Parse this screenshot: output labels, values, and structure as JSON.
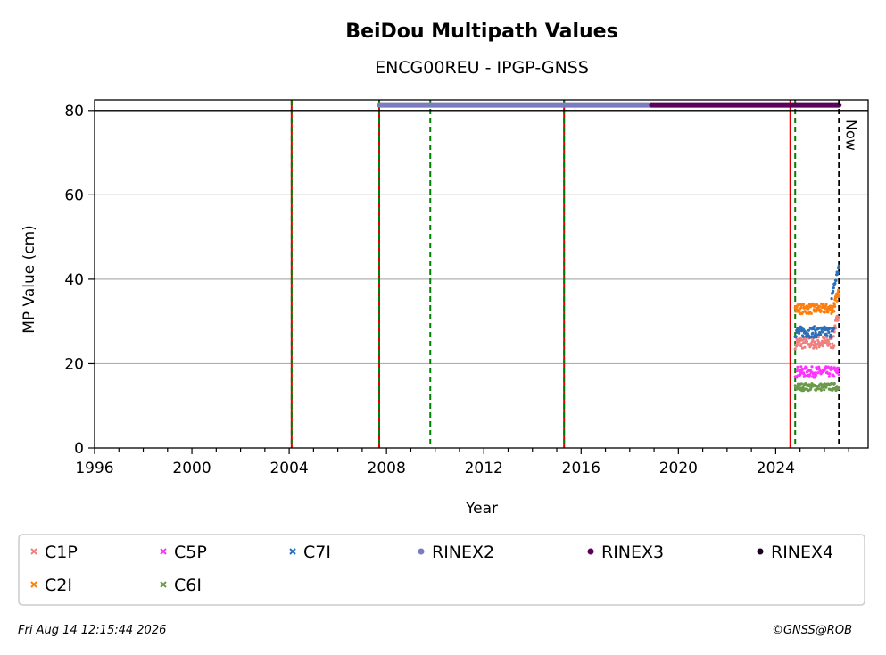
{
  "chart_data": {
    "type": "scatter",
    "title": "BeiDou Multipath Values",
    "subtitle": "ENCG00REU - IPGP-GNSS",
    "xlabel": "Year",
    "ylabel": "MP Value (cm)",
    "xlim": [
      1996,
      2027.8
    ],
    "ylim": [
      0,
      82.5
    ],
    "xticks": [
      1996,
      2000,
      2004,
      2008,
      2012,
      2016,
      2020,
      2024
    ],
    "yticks": [
      0,
      20,
      40,
      60,
      80
    ],
    "grid": "y",
    "now_label": "Now",
    "now_x": 2026.6,
    "reference_line_y": 80,
    "red_vlines": [
      2004.1,
      2007.7,
      2015.3,
      2024.6
    ],
    "green_dashed_vlines": [
      2004.1,
      2007.7,
      2009.8,
      2015.3,
      2024.8
    ],
    "rinex_bars": [
      {
        "name": "RINEX2",
        "color": "#7b7bbf",
        "start": 2007.7,
        "end": 2018.9,
        "y": 81.3
      },
      {
        "name": "RINEX3",
        "color": "#5b005b",
        "start": 2018.9,
        "end": 2026.6,
        "y": 81.3
      }
    ],
    "series": [
      {
        "name": "C1P",
        "color": "#f08080",
        "start": 2024.8,
        "end": 2026.4,
        "mean": 25,
        "spread": 1.5,
        "tail": [
          2026.4,
          2026.6,
          28,
          32
        ]
      },
      {
        "name": "C2I",
        "color": "#ff7f0e",
        "start": 2024.8,
        "end": 2026.4,
        "mean": 33,
        "spread": 1.2,
        "tail": [
          2026.4,
          2026.6,
          34,
          37
        ]
      },
      {
        "name": "C5P",
        "color": "#ff33ff",
        "start": 2024.8,
        "end": 2026.6,
        "mean": 18,
        "spread": 1.3,
        "tail": null
      },
      {
        "name": "C6I",
        "color": "#6a9a4a",
        "start": 2024.8,
        "end": 2026.6,
        "mean": 14.5,
        "spread": 0.9,
        "tail": null
      },
      {
        "name": "C7I",
        "color": "#2a6fb8",
        "start": 2024.8,
        "end": 2026.4,
        "mean": 27.5,
        "spread": 1.3,
        "tail": [
          2026.3,
          2026.6,
          36,
          43
        ]
      }
    ],
    "legend": [
      {
        "label": "C1P",
        "color": "#f08080",
        "marker": "x"
      },
      {
        "label": "C5P",
        "color": "#ff33ff",
        "marker": "x"
      },
      {
        "label": "C7I",
        "color": "#2a6fb8",
        "marker": "x"
      },
      {
        "label": "RINEX2",
        "color": "#7b7bbf",
        "marker": "dot"
      },
      {
        "label": "RINEX3",
        "color": "#5b005b",
        "marker": "dot"
      },
      {
        "label": "RINEX4",
        "color": "#1a0020",
        "marker": "dot"
      },
      {
        "label": "C2I",
        "color": "#ff7f0e",
        "marker": "x"
      },
      {
        "label": "C6I",
        "color": "#6a9a4a",
        "marker": "x"
      }
    ],
    "legend_position": "bottom"
  },
  "footer": {
    "timestamp": "Fri Aug 14 12:15:44 2026",
    "copyright": "©GNSS@ROB"
  }
}
